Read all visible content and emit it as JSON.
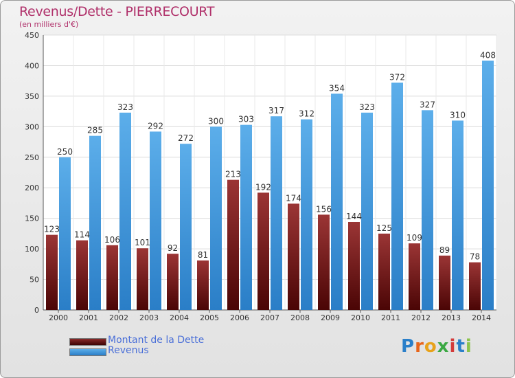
{
  "chart_data": {
    "type": "bar",
    "title": "Revenus/Dette - PIERRECOURT",
    "subtitle": "(en milliers d'€)",
    "categories": [
      "2000",
      "2001",
      "2002",
      "2003",
      "2004",
      "2005",
      "2006",
      "2007",
      "2008",
      "2009",
      "2010",
      "2011",
      "2012",
      "2013",
      "2014"
    ],
    "series": [
      {
        "name": "Montant de la Dette",
        "color": "#7a1a1a",
        "values": [
          123,
          114,
          106,
          101,
          92,
          81,
          213,
          192,
          174,
          156,
          144,
          125,
          109,
          89,
          78
        ]
      },
      {
        "name": "Revenus",
        "color": "#3d8fd9",
        "values": [
          250,
          285,
          323,
          292,
          272,
          300,
          303,
          317,
          312,
          354,
          323,
          372,
          327,
          310,
          408
        ]
      }
    ],
    "yticks": [
      0,
      50,
      100,
      150,
      200,
      250,
      300,
      350,
      400,
      450
    ],
    "ylim": [
      0,
      450
    ],
    "xlabel": "",
    "ylabel": "",
    "grid": true,
    "legend": "bottom-left"
  },
  "logo": {
    "letters": [
      "P",
      "r",
      "o",
      "x",
      "i",
      "t",
      "i"
    ],
    "colors": [
      "#2a7fc9",
      "#e8651a",
      "#e8a21a",
      "#3aa843",
      "#d43b3b",
      "#2a7fc9",
      "#8bc34a"
    ]
  }
}
